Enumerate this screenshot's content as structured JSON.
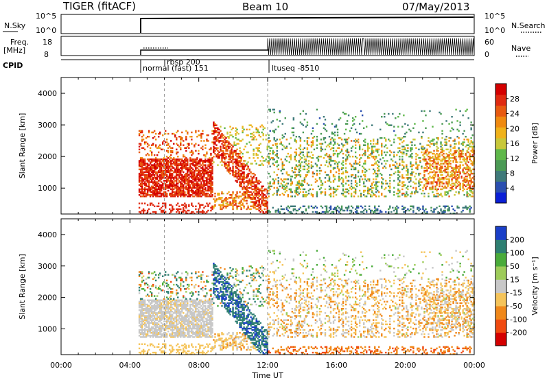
{
  "header": {
    "station": "TIGER (fitACF)",
    "beam": "Beam 10",
    "date": "07/May/2013"
  },
  "strips": {
    "nsky_label": "N.Sky",
    "nsky_ticks": [
      "10^5",
      "10^0"
    ],
    "nsearch_label": "N.Search",
    "nsearch_ticks": [
      "10^5",
      "10^0"
    ],
    "freq_label_1": "Freq.",
    "freq_label_2": "[MHz]",
    "freq_ticks": [
      "18",
      "8"
    ],
    "nave_label": "Nave",
    "nave_ticks": [
      "60",
      "0"
    ],
    "cpid_label": "CPID",
    "cpid_entries": [
      "rbsp 200",
      "normal (fast) 151",
      "ltuseq -8510"
    ]
  },
  "chart_data": [
    {
      "type": "heatmap",
      "name": "power-panel",
      "xlabel": "",
      "ylabel": "Slant Range [km]",
      "x_ticks": [
        "00:00",
        "04:00",
        "08:00",
        "12:00",
        "16:00",
        "20:00",
        "00:00"
      ],
      "y_ticks": [
        "1000",
        "2000",
        "3000",
        "4000"
      ],
      "ylim": [
        180,
        4500
      ],
      "xlim_hours": [
        0,
        24
      ],
      "colorbar_label": "Power [dB]",
      "colorbar_ticks": [
        "28",
        "24",
        "20",
        "16",
        "12",
        "8",
        "4"
      ],
      "colorbar_range": [
        0,
        30
      ],
      "data_coverage_hours": [
        4.5,
        24
      ]
    },
    {
      "type": "heatmap",
      "name": "velocity-panel",
      "xlabel": "Time UT",
      "ylabel": "Slant Range [km]",
      "x_ticks": [
        "00:00",
        "04:00",
        "08:00",
        "12:00",
        "16:00",
        "20:00",
        "00:00"
      ],
      "y_ticks": [
        "1000",
        "2000",
        "3000",
        "4000"
      ],
      "ylim": [
        180,
        4500
      ],
      "xlim_hours": [
        0,
        24
      ],
      "colorbar_label": "Velocity [m s⁻¹]",
      "colorbar_ticks": [
        "200",
        "100",
        "50",
        "15",
        "-15",
        "-50",
        "-100",
        "-200"
      ],
      "colorbar_range": [
        -250,
        250
      ],
      "data_coverage_hours": [
        4.5,
        24
      ]
    }
  ],
  "colors": {
    "power_scale": [
      "#0a1fd6",
      "#2b4fb0",
      "#3f7a7a",
      "#4b9a55",
      "#5fb84a",
      "#c8c83a",
      "#f0b21a",
      "#f08a10",
      "#e85a10",
      "#e02a10",
      "#d40000"
    ],
    "velocity_scale": [
      "#d40000",
      "#f04a10",
      "#f0881a",
      "#f5c45a",
      "#c8c8c8",
      "#9ecc5a",
      "#4aab3a",
      "#2e7f72",
      "#1a3fc8"
    ]
  }
}
